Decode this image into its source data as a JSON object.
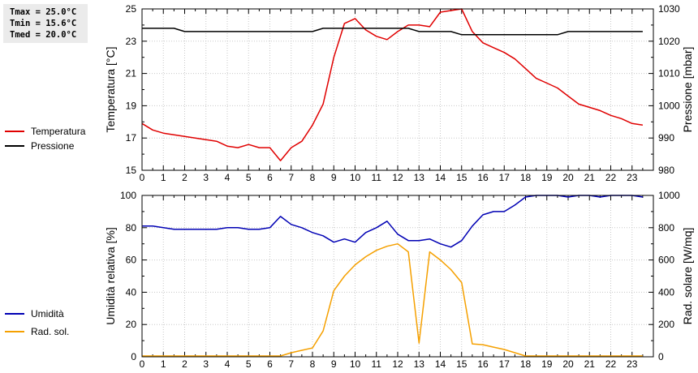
{
  "stats": {
    "tmax": "Tmax = 25.0°C",
    "tmin": "Tmin = 15.6°C",
    "tmed": "Tmed = 20.0°C"
  },
  "colors": {
    "temperature": "#e00000",
    "pressure": "#000000",
    "humidity": "#0000b4",
    "radiation": "#f5a000",
    "frame": "#000000",
    "grid": "#c8c8c8"
  },
  "chart_data": [
    {
      "type": "line",
      "xlabel": "",
      "ylabel": "Temperatura [°C]",
      "ylabel_right": "Pressione [mbar]",
      "xlim": [
        0,
        24
      ],
      "ylim": [
        15,
        25
      ],
      "ylim_right": [
        980,
        1030
      ],
      "x_ticks": [
        "0",
        "1",
        "2",
        "3",
        "4",
        "5",
        "6",
        "7",
        "8",
        "9",
        "10",
        "11",
        "12",
        "13",
        "14",
        "15",
        "16",
        "17",
        "18",
        "19",
        "20",
        "21",
        "22",
        "23"
      ],
      "y_ticks": [
        "15",
        "17",
        "19",
        "21",
        "23",
        "25"
      ],
      "y_ticks_right": [
        "980",
        "990",
        "1000",
        "1010",
        "1020",
        "1030"
      ],
      "grid": true,
      "legend": "left",
      "series": [
        {
          "name": "Temperatura",
          "axis": "left",
          "x": [
            0,
            0.5,
            1,
            1.5,
            2,
            2.5,
            3,
            3.5,
            4,
            4.5,
            5,
            5.5,
            6,
            6.5,
            7,
            7.5,
            8,
            8.5,
            9,
            9.5,
            10,
            10.5,
            11,
            11.5,
            12,
            12.5,
            13,
            13.5,
            14,
            14.5,
            15,
            15.5,
            16,
            16.5,
            17,
            17.5,
            18,
            18.5,
            19,
            19.5,
            20,
            20.5,
            21,
            21.5,
            22,
            22.5,
            23,
            23.5
          ],
          "y": [
            17.9,
            17.5,
            17.3,
            17.2,
            17.1,
            17.0,
            16.9,
            16.8,
            16.5,
            16.4,
            16.6,
            16.4,
            16.4,
            15.6,
            16.4,
            16.8,
            17.8,
            19.1,
            22.0,
            24.1,
            24.4,
            23.7,
            23.3,
            23.1,
            23.6,
            24.0,
            24.0,
            23.9,
            24.8,
            24.9,
            25.0,
            23.6,
            22.9,
            22.6,
            22.3,
            21.9,
            21.3,
            20.7,
            20.4,
            20.1,
            19.6,
            19.1,
            18.9,
            18.7,
            18.4,
            18.2,
            17.9,
            17.8
          ]
        },
        {
          "name": "Pressione",
          "axis": "right",
          "x": [
            0,
            1,
            1.5,
            2,
            3,
            4,
            5,
            6,
            7,
            8,
            8.5,
            9,
            10,
            11,
            12,
            12.5,
            13,
            14,
            14.5,
            15,
            16,
            17,
            18,
            19,
            19.5,
            20,
            21,
            22,
            23,
            23.5
          ],
          "y": [
            1024,
            1024,
            1024,
            1023,
            1023,
            1023,
            1023,
            1023,
            1023,
            1023,
            1024,
            1024,
            1024,
            1024,
            1024,
            1024,
            1023,
            1023,
            1023,
            1022,
            1022,
            1022,
            1022,
            1022,
            1022,
            1023,
            1023,
            1023,
            1023,
            1023
          ]
        }
      ]
    },
    {
      "type": "line",
      "xlabel": "",
      "ylabel": "Umidità relativa [%]",
      "ylabel_right": "Rad. solare [W/mq]",
      "xlim": [
        0,
        24
      ],
      "ylim": [
        0,
        100
      ],
      "ylim_right": [
        0,
        1000
      ],
      "x_ticks": [
        "0",
        "1",
        "2",
        "3",
        "4",
        "5",
        "6",
        "7",
        "8",
        "9",
        "10",
        "11",
        "12",
        "13",
        "14",
        "15",
        "16",
        "17",
        "18",
        "19",
        "20",
        "21",
        "22",
        "23"
      ],
      "y_ticks": [
        "0",
        "20",
        "40",
        "60",
        "80",
        "100"
      ],
      "y_ticks_right": [
        "0",
        "200",
        "400",
        "600",
        "800",
        "1000"
      ],
      "grid": true,
      "legend": "left",
      "series": [
        {
          "name": "Umidità",
          "axis": "left",
          "x": [
            0,
            0.5,
            1,
            1.5,
            2,
            2.5,
            3,
            3.5,
            4,
            4.5,
            5,
            5.5,
            6,
            6.5,
            7,
            7.5,
            8,
            8.5,
            9,
            9.5,
            10,
            10.5,
            11,
            11.5,
            12,
            12.5,
            13,
            13.5,
            14,
            14.5,
            15,
            15.5,
            16,
            16.5,
            17,
            17.5,
            18,
            18.5,
            19,
            19.5,
            20,
            20.5,
            21,
            21.5,
            22,
            22.5,
            23,
            23.5
          ],
          "y": [
            81,
            81,
            80,
            79,
            79,
            79,
            79,
            79,
            80,
            80,
            79,
            79,
            80,
            87,
            82,
            80,
            77,
            75,
            71,
            73,
            71,
            77,
            80,
            84,
            76,
            72,
            72,
            73,
            70,
            68,
            72,
            81,
            88,
            90,
            90,
            94,
            99,
            100,
            100,
            100,
            99,
            100,
            100,
            99,
            100,
            100,
            100,
            99
          ]
        },
        {
          "name": "Rad. sol.",
          "axis": "right",
          "x": [
            0,
            0.5,
            1,
            1.5,
            2,
            2.5,
            3,
            3.5,
            4,
            4.5,
            5,
            5.5,
            6,
            6.5,
            7,
            7.5,
            8,
            8.5,
            9,
            9.5,
            10,
            10.5,
            11,
            11.5,
            12,
            12.5,
            13,
            13.5,
            14,
            14.5,
            15,
            15.5,
            16,
            16.5,
            17,
            17.5,
            18,
            18.5,
            19,
            19.5,
            20,
            20.5,
            21,
            21.5,
            22,
            22.5,
            23,
            23.5
          ],
          "y": [
            5,
            5,
            5,
            5,
            5,
            5,
            5,
            5,
            5,
            5,
            5,
            5,
            5,
            5,
            25,
            40,
            55,
            160,
            410,
            500,
            570,
            620,
            660,
            685,
            700,
            650,
            85,
            650,
            600,
            540,
            460,
            80,
            75,
            60,
            45,
            25,
            5,
            5,
            5,
            5,
            5,
            5,
            5,
            5,
            5,
            5,
            5,
            5
          ]
        }
      ]
    }
  ]
}
